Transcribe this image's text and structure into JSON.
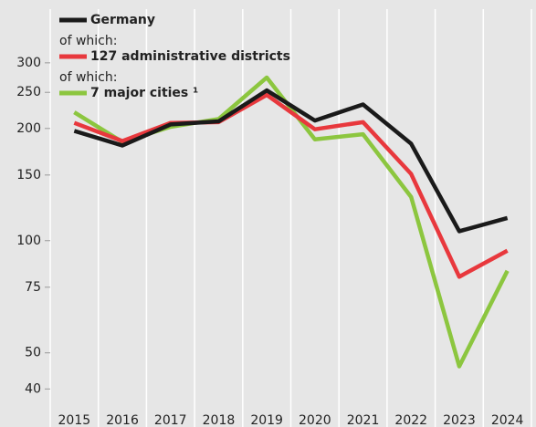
{
  "chart_data": {
    "type": "line",
    "categories": [
      "2015",
      "2016",
      "2017",
      "2018",
      "2019",
      "2020",
      "2021",
      "2022",
      "2023",
      "2024"
    ],
    "series": [
      {
        "name": "Germany",
        "color": "#1a1a1a",
        "values": [
          197,
          180,
          205,
          209,
          253,
          210,
          232,
          182,
          106,
          115
        ]
      },
      {
        "name": "127 administrative districts",
        "color": "#e8383d",
        "values": [
          207,
          185,
          207,
          208,
          246,
          199,
          208,
          151,
          80,
          94
        ]
      },
      {
        "name": "7 major cities ¹",
        "color": "#8cc63f",
        "values": [
          221,
          184,
          202,
          212,
          274,
          187,
          193,
          131,
          46,
          83
        ]
      }
    ],
    "legend_notes": [
      "of which:",
      "of which:"
    ],
    "ylim": [
      35,
      430
    ],
    "yticks": [
      40,
      50,
      75,
      100,
      150,
      200,
      250,
      300
    ],
    "log_scale": true,
    "legend": "top-left"
  }
}
